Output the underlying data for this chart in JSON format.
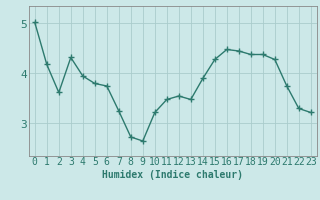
{
  "x": [
    0,
    1,
    2,
    3,
    4,
    5,
    6,
    7,
    8,
    9,
    10,
    11,
    12,
    13,
    14,
    15,
    16,
    17,
    18,
    19,
    20,
    21,
    22,
    23
  ],
  "y": [
    5.02,
    4.18,
    3.62,
    4.32,
    3.95,
    3.8,
    3.75,
    3.25,
    2.73,
    2.65,
    3.22,
    3.48,
    3.55,
    3.48,
    3.9,
    4.28,
    4.48,
    4.45,
    4.38,
    4.38,
    4.28,
    3.75,
    3.3,
    3.22
  ],
  "line_color": "#2d7a6e",
  "marker": "+",
  "markersize": 4,
  "linewidth": 1.0,
  "bg_color": "#cce8e8",
  "grid_color": "#aacccc",
  "xlabel": "Humidex (Indice chaleur)",
  "xlabel_fontsize": 7,
  "xtick_labels": [
    "0",
    "1",
    "2",
    "3",
    "4",
    "5",
    "6",
    "7",
    "8",
    "9",
    "10",
    "11",
    "12",
    "13",
    "14",
    "15",
    "16",
    "17",
    "18",
    "19",
    "20",
    "21",
    "22",
    "23"
  ],
  "ytick_vals": [
    3,
    4,
    5
  ],
  "ylim": [
    2.35,
    5.35
  ],
  "xlim": [
    -0.5,
    23.5
  ],
  "tick_fontsize": 7,
  "tick_color": "#2d7a6e",
  "axis_color": "#888888"
}
